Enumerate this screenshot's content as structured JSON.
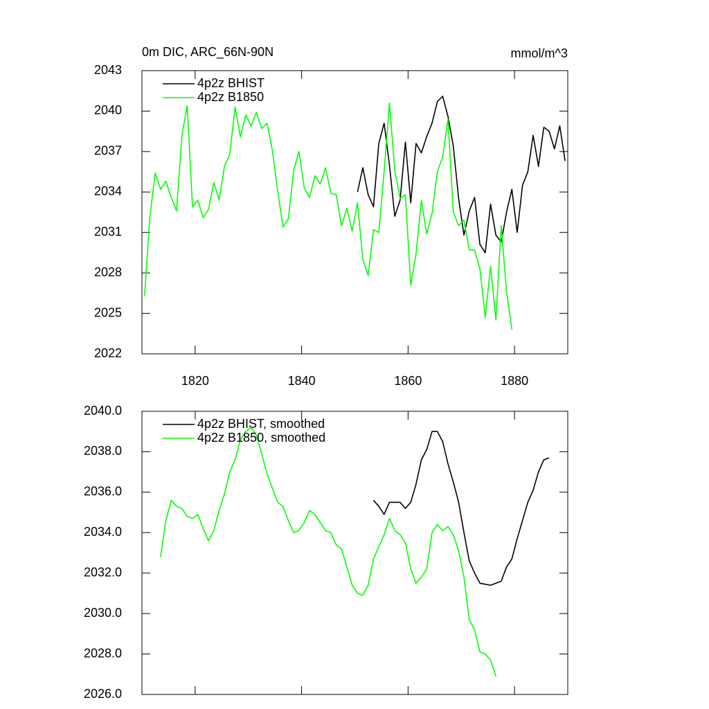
{
  "chart_data": [
    {
      "type": "line",
      "title": "0m DIC, ARC_66N-90N",
      "units": "mmol/m^3",
      "x": [
        1810.5,
        1811.5,
        1812.5,
        1813.5,
        1814.5,
        1815.5,
        1816.5,
        1817.5,
        1818.5,
        1819.5,
        1820.5,
        1821.5,
        1822.5,
        1823.5,
        1824.5,
        1825.5,
        1826.5,
        1827.5,
        1828.5,
        1829.5,
        1830.5,
        1831.5,
        1832.5,
        1833.5,
        1834.5,
        1835.5,
        1836.5,
        1837.5,
        1838.5,
        1839.5,
        1840.5,
        1841.5,
        1842.5,
        1843.5,
        1844.5,
        1845.5,
        1846.5,
        1847.5,
        1848.5,
        1849.5,
        1850.5,
        1851.5,
        1852.5,
        1853.5,
        1854.5,
        1855.5,
        1856.5,
        1857.5,
        1858.5,
        1859.5,
        1860.5,
        1861.5,
        1862.5,
        1863.5,
        1864.5,
        1865.5,
        1866.5,
        1867.5,
        1868.5,
        1869.5,
        1870.5,
        1871.5,
        1872.5,
        1873.5,
        1874.5,
        1875.5,
        1876.5,
        1877.5,
        1878.5,
        1879.5,
        1880.5,
        1881.5,
        1882.5,
        1883.5,
        1884.5,
        1885.5,
        1886.5,
        1887.5,
        1888.5,
        1889.5
      ],
      "series": [
        {
          "name": "4p2z BHIST",
          "color": "#000000",
          "values": [
            null,
            null,
            null,
            null,
            null,
            null,
            null,
            null,
            null,
            null,
            null,
            null,
            null,
            null,
            null,
            null,
            null,
            null,
            null,
            null,
            null,
            null,
            null,
            null,
            null,
            null,
            null,
            null,
            null,
            null,
            null,
            null,
            null,
            null,
            null,
            null,
            null,
            null,
            null,
            null,
            2034.0,
            2035.8,
            2033.8,
            2032.9,
            2037.6,
            2039.1,
            2036.0,
            2032.2,
            2033.4,
            2037.7,
            2033.2,
            2037.6,
            2036.9,
            2038.1,
            2039.1,
            2040.7,
            2041.1,
            2039.6,
            2037.4,
            2033.5,
            2030.8,
            2032.6,
            2033.6,
            2030.1,
            2029.5,
            2033.1,
            2030.8,
            2030.3,
            2032.5,
            2034.2,
            2031.0,
            2034.5,
            2035.5,
            2038.2,
            2035.9,
            2038.8,
            2038.5,
            2037.2,
            2038.9,
            2036.3
          ]
        },
        {
          "name": "4p2z B1850",
          "color": "#00ff00",
          "values": [
            2026.3,
            2032.2,
            2035.4,
            2034.2,
            2034.8,
            2033.6,
            2032.6,
            2038.2,
            2040.4,
            2032.9,
            2033.4,
            2032.1,
            2032.7,
            2034.7,
            2033.4,
            2035.9,
            2036.8,
            2040.3,
            2038.1,
            2039.7,
            2038.9,
            2039.9,
            2038.7,
            2039.1,
            2037.1,
            2034.1,
            2031.4,
            2032.0,
            2035.6,
            2037.0,
            2034.3,
            2033.6,
            2035.2,
            2034.6,
            2035.8,
            2033.9,
            2033.8,
            2031.5,
            2032.8,
            2031.1,
            2033.2,
            2029.0,
            2027.8,
            2031.2,
            2031.0,
            2035.5,
            2040.6,
            2035.6,
            2033.5,
            2033.8,
            2027.1,
            2029.4,
            2033.4,
            2030.9,
            2032.4,
            2035.5,
            2036.6,
            2039.4,
            2032.5,
            2031.5,
            2031.9,
            2029.7,
            2029.7,
            2028.3,
            2024.7,
            2028.5,
            2024.5,
            2031.5,
            2026.6,
            2023.8,
            null,
            null,
            null,
            null,
            null,
            null,
            null,
            null,
            null,
            null
          ]
        }
      ],
      "xlim": [
        1810,
        1890
      ],
      "xticks": [
        1820,
        1840,
        1860,
        1880
      ],
      "ylim": [
        2022,
        2043
      ],
      "yticks": [
        2022,
        2025,
        2028,
        2031,
        2034,
        2037,
        2040,
        2043
      ],
      "legend": "top-left"
    },
    {
      "type": "line",
      "x": [
        1810.5,
        1811.5,
        1812.5,
        1813.5,
        1814.5,
        1815.5,
        1816.5,
        1817.5,
        1818.5,
        1819.5,
        1820.5,
        1821.5,
        1822.5,
        1823.5,
        1824.5,
        1825.5,
        1826.5,
        1827.5,
        1828.5,
        1829.5,
        1830.5,
        1831.5,
        1832.5,
        1833.5,
        1834.5,
        1835.5,
        1836.5,
        1837.5,
        1838.5,
        1839.5,
        1840.5,
        1841.5,
        1842.5,
        1843.5,
        1844.5,
        1845.5,
        1846.5,
        1847.5,
        1848.5,
        1849.5,
        1850.5,
        1851.5,
        1852.5,
        1853.5,
        1854.5,
        1855.5,
        1856.5,
        1857.5,
        1858.5,
        1859.5,
        1860.5,
        1861.5,
        1862.5,
        1863.5,
        1864.5,
        1865.5,
        1866.5,
        1867.5,
        1868.5,
        1869.5,
        1870.5,
        1871.5,
        1872.5,
        1873.5,
        1874.5,
        1875.5,
        1876.5,
        1877.5,
        1878.5,
        1879.5,
        1880.5,
        1881.5,
        1882.5,
        1883.5,
        1884.5,
        1885.5,
        1886.5,
        1887.5,
        1888.5,
        1889.5
      ],
      "series": [
        {
          "name": "4p2z BHIST, smoothed",
          "color": "#000000",
          "values": [
            null,
            null,
            null,
            null,
            null,
            null,
            null,
            null,
            null,
            null,
            null,
            null,
            null,
            null,
            null,
            null,
            null,
            null,
            null,
            null,
            null,
            null,
            null,
            null,
            null,
            null,
            null,
            null,
            null,
            null,
            null,
            null,
            null,
            null,
            null,
            null,
            null,
            null,
            null,
            null,
            null,
            null,
            null,
            2035.6,
            2035.3,
            2034.9,
            2035.5,
            2035.5,
            2035.5,
            2035.2,
            2035.5,
            2036.4,
            2037.6,
            2038.1,
            2039.0,
            2039.0,
            2038.5,
            2037.4,
            2036.5,
            2035.5,
            2034.0,
            2032.6,
            2032.0,
            2031.5,
            2031.45,
            2031.4,
            2031.5,
            2031.6,
            2032.3,
            2032.7,
            2033.7,
            2034.6,
            2035.5,
            2036.1,
            2037.0,
            2037.6,
            2037.7,
            null,
            null,
            null
          ]
        },
        {
          "name": "4p2z B1850, smoothed",
          "color": "#00ff00",
          "values": [
            null,
            null,
            null,
            2032.8,
            2034.6,
            2035.6,
            2035.3,
            2035.2,
            2034.8,
            2034.7,
            2034.9,
            2034.2,
            2033.6,
            2034.1,
            2035.1,
            2035.9,
            2037.0,
            2037.6,
            2038.6,
            2039.0,
            2039.2,
            2038.8,
            2037.9,
            2036.9,
            2036.2,
            2035.5,
            2035.3,
            2034.6,
            2034.0,
            2034.1,
            2034.5,
            2035.1,
            2034.9,
            2034.5,
            2034.1,
            2034.0,
            2033.4,
            2033.2,
            2032.3,
            2031.4,
            2031.0,
            2030.9,
            2031.4,
            2032.7,
            2033.3,
            2033.9,
            2034.7,
            2034.1,
            2033.9,
            2033.5,
            2032.2,
            2031.5,
            2031.8,
            2032.2,
            2034.0,
            2034.4,
            2034.1,
            2034.3,
            2033.9,
            2033.1,
            2031.8,
            2029.7,
            2029.2,
            2028.1,
            2028.0,
            2027.7,
            2026.9,
            null,
            null,
            null,
            null,
            null,
            null,
            null,
            null,
            null,
            null,
            null,
            null,
            null
          ]
        }
      ],
      "xlim": [
        1810,
        1890
      ],
      "xticks": [
        1820,
        1840,
        1860,
        1880
      ],
      "ylim": [
        2026,
        2040
      ],
      "yticks": [
        {
          "value": 2026,
          "label": "2026.0"
        },
        {
          "value": 2028,
          "label": "2028.0"
        },
        {
          "value": 2030,
          "label": "2030.0"
        },
        {
          "value": 2032,
          "label": "2032.0"
        },
        {
          "value": 2034,
          "label": "2034.0"
        },
        {
          "value": 2036,
          "label": "2036.0"
        },
        {
          "value": 2038,
          "label": "2038.0"
        },
        {
          "value": 2040,
          "label": "2040.0"
        }
      ],
      "legend": "top-left"
    }
  ]
}
